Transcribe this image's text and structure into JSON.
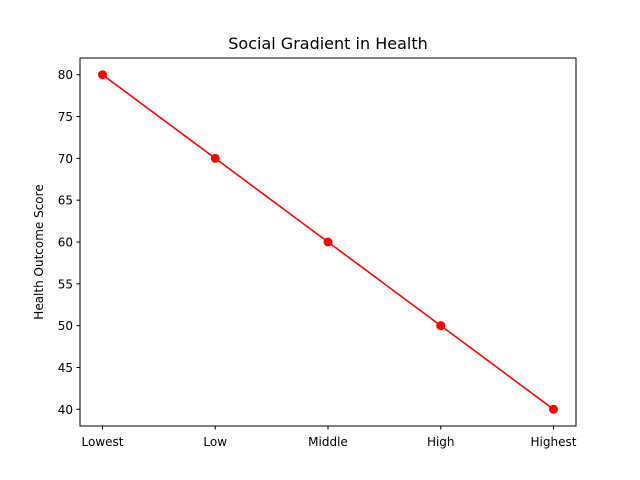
{
  "chart_data": {
    "type": "line",
    "title": "Social Gradient in Health",
    "xlabel": "",
    "ylabel": "Health Outcome Score",
    "categories": [
      "Lowest",
      "Low",
      "Middle",
      "High",
      "Highest"
    ],
    "series": [
      {
        "values": [
          80,
          70,
          60,
          50,
          40
        ],
        "color": "#ff0000",
        "marker": "circle"
      }
    ],
    "ylim": [
      38,
      82
    ],
    "yticks": [
      40,
      45,
      50,
      55,
      60,
      65,
      70,
      75,
      80
    ],
    "grid": false,
    "legend": "none"
  }
}
